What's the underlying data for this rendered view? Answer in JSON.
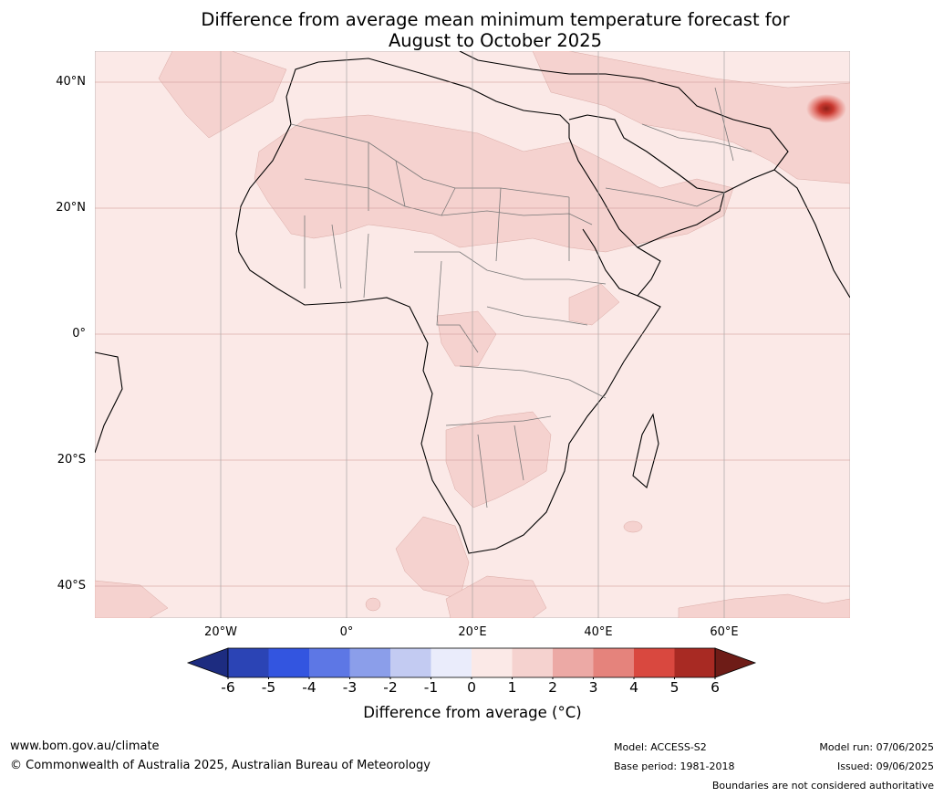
{
  "title": {
    "line1": "Difference from average mean minimum temperature forecast for",
    "line2": "August to October 2025"
  },
  "map": {
    "region": "Africa and Middle East",
    "lat_labels": [
      "40°N",
      "20°N",
      "0°",
      "20°S",
      "40°S"
    ],
    "lon_labels": [
      "20°W",
      "0°",
      "20°E",
      "40°E",
      "60°E"
    ],
    "background_color": "#fbe9e7",
    "anomaly_feature": "Strong positive anomaly centred over the western Himalaya / Tibetan Plateau (about 35°N, 76°E)"
  },
  "colorbar": {
    "ticks": [
      "-6",
      "-5",
      "-4",
      "-3",
      "-2",
      "-1",
      "0",
      "1",
      "2",
      "3",
      "4",
      "5",
      "6"
    ],
    "colors": [
      "#1d2c80",
      "#2b44b5",
      "#3355e0",
      "#5d77e5",
      "#8b9eea",
      "#c3cbf2",
      "#eaecfb",
      "#fbe9e7",
      "#f5d2cf",
      "#eca9a5",
      "#e5837c",
      "#d9483f",
      "#a82a23",
      "#6e1c17"
    ],
    "label": "Difference from average (°C)"
  },
  "footer": {
    "website": "www.bom.gov.au/climate",
    "copyright": "© Commonwealth of Australia 2025, Australian Bureau of Meteorology",
    "model": "Model: ACCESS-S2",
    "base_period": "Base period: 1981-2018",
    "model_run": "Model run: 07/06/2025",
    "issued": "Issued: 09/06/2025",
    "disclaimer": "Boundaries are not considered authoritative"
  }
}
